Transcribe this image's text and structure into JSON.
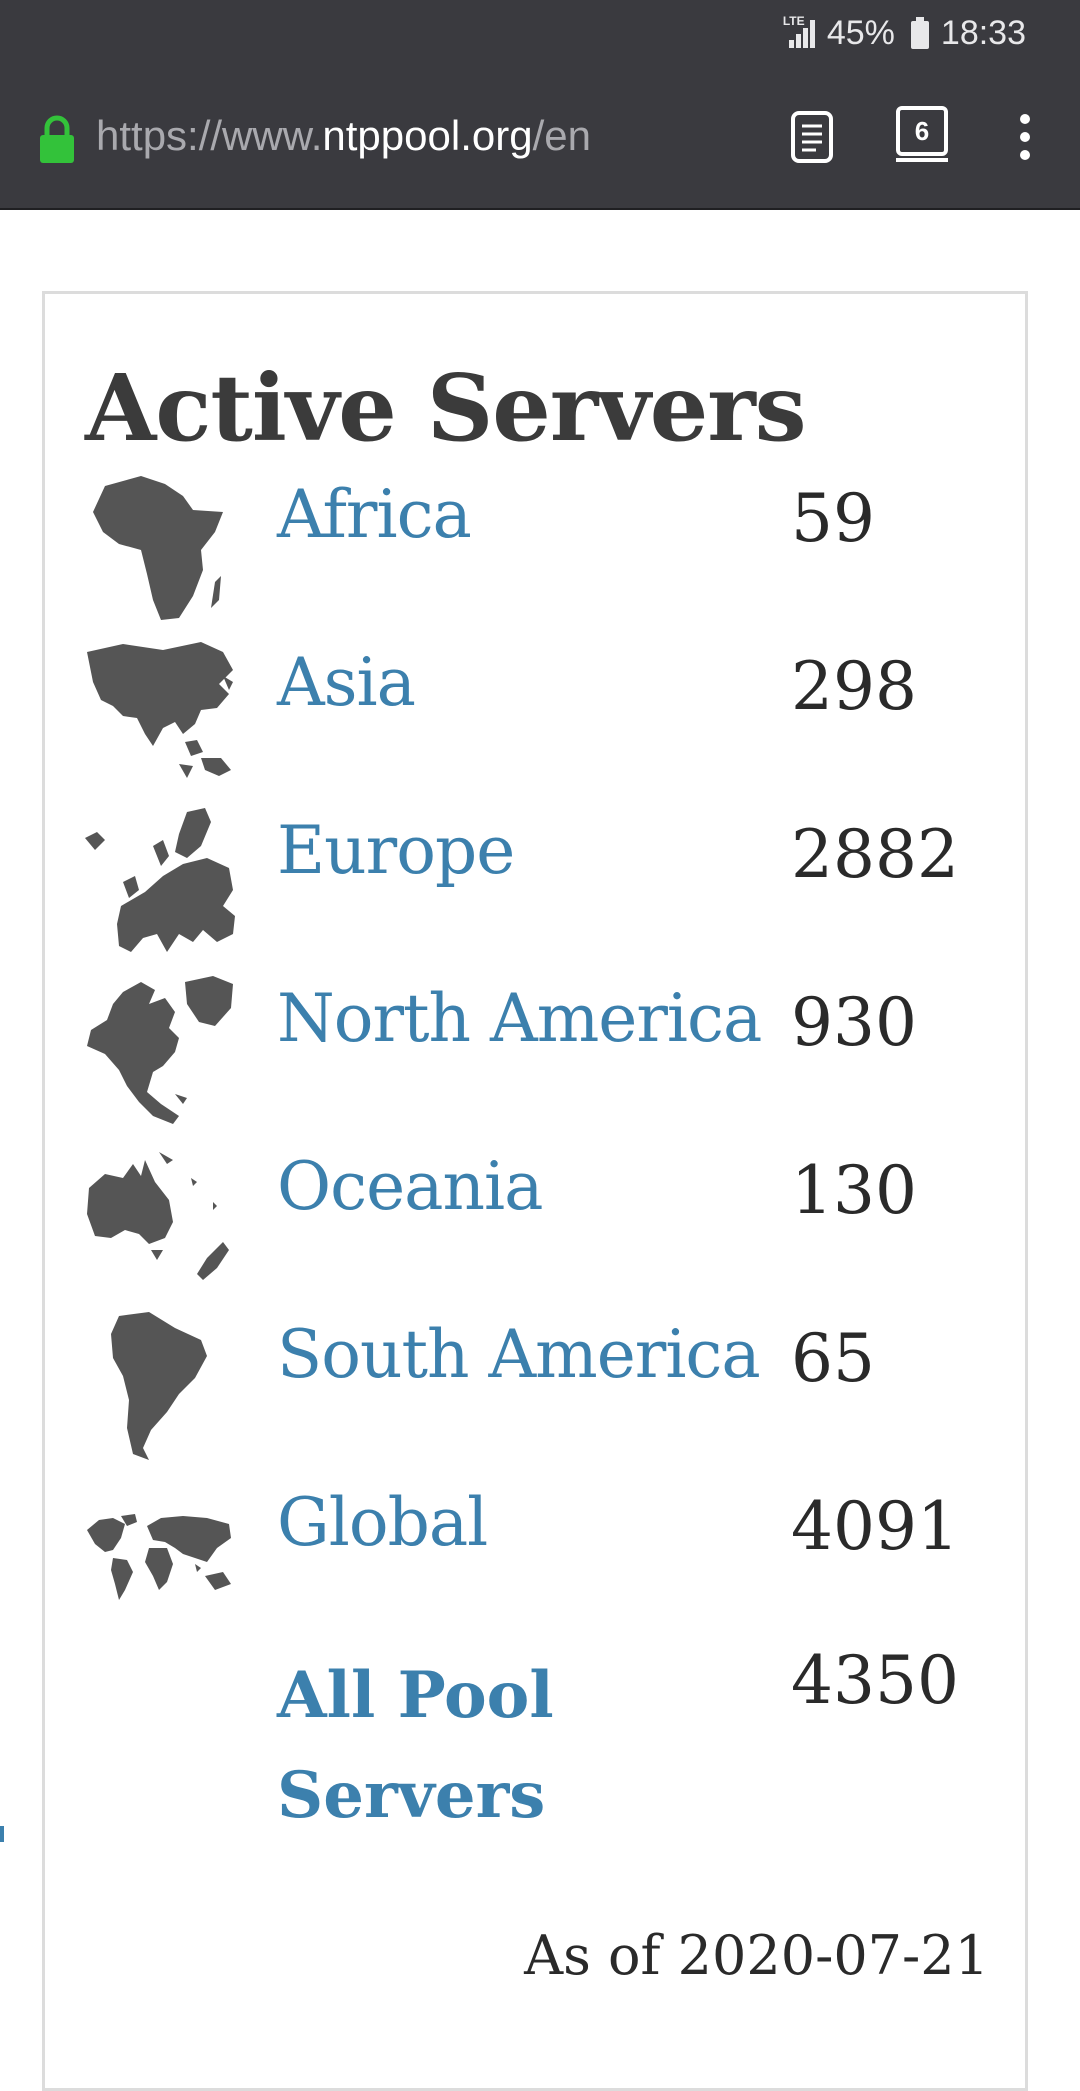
{
  "status_bar": {
    "network": "LTE",
    "battery": "45%",
    "time": "18:33"
  },
  "browser": {
    "url_scheme": "https://www.",
    "url_host": "ntppool.org",
    "url_path": "/en",
    "tab_count": "6",
    "icons": [
      "lock-icon",
      "reader-mode-icon",
      "tabs-icon",
      "menu-icon"
    ]
  },
  "card": {
    "title": "Active Servers",
    "regions": [
      {
        "name": "Africa",
        "count": "59",
        "icon": "africa-map-icon"
      },
      {
        "name": "Asia",
        "count": "298",
        "icon": "asia-map-icon"
      },
      {
        "name": "Europe",
        "count": "2882",
        "icon": "europe-map-icon"
      },
      {
        "name": "North America",
        "count": "930",
        "icon": "north-america-map-icon"
      },
      {
        "name": "Oceania",
        "count": "130",
        "icon": "oceania-map-icon"
      },
      {
        "name": "South America",
        "count": "65",
        "icon": "south-america-map-icon"
      },
      {
        "name": "Global",
        "count": "4091",
        "icon": "world-map-icon"
      }
    ],
    "all_servers": {
      "label": "All Pool Servers",
      "count": "4350"
    },
    "as_of": "As of 2020-07-21"
  },
  "colors": {
    "chrome": "#3a3a3f",
    "link": "#3c80ad",
    "map": "#555555",
    "lock": "#33c23a"
  }
}
